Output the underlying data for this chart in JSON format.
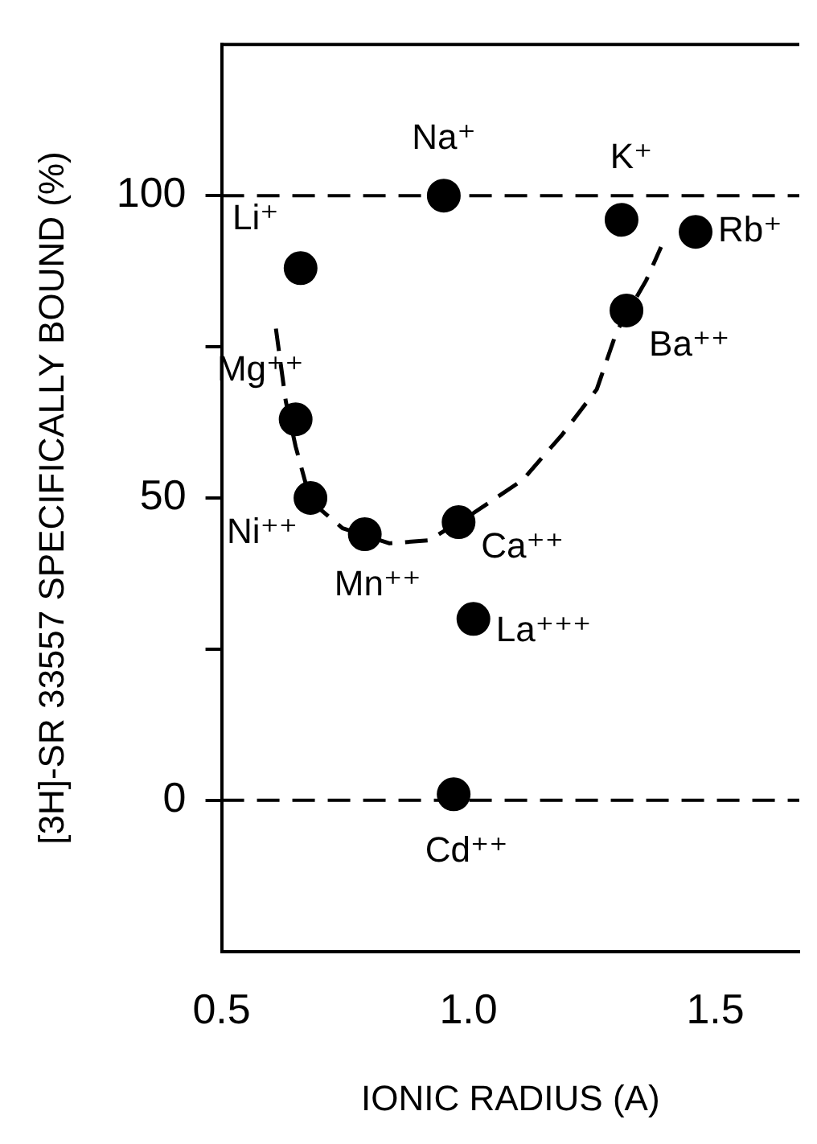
{
  "chart_data": {
    "type": "scatter",
    "xlabel": "IONIC RADIUS (A)",
    "ylabel": "[3H]-SR 33557 SPECIFICALLY BOUND (%)",
    "xlim": [
      0.5,
      1.67
    ],
    "xticks": [
      0.5,
      {
        "value": 1,
        "label": "1.0"
      },
      1.5
    ],
    "ylim": [
      -25,
      125
    ],
    "yticks": [
      0,
      {
        "value": 25,
        "label": null
      },
      50,
      {
        "value": 75,
        "label": null
      },
      100
    ],
    "grid": false,
    "legend": false,
    "marker": "circle",
    "series": [
      {
        "color": "#000000",
        "x": [
          0.66,
          0.95,
          1.31,
          1.46,
          1.32,
          0.65,
          0.68,
          0.79,
          0.98,
          1.01,
          0.97
        ],
        "values": [
          88,
          100,
          96,
          94,
          81,
          63,
          50,
          44,
          46,
          30,
          1
        ]
      },
      {
        "type": "line",
        "line_style": "dashed",
        "marker": "none",
        "color": "#000000",
        "x": [
          0.61,
          0.63,
          0.65,
          0.68,
          0.745,
          0.84,
          0.92,
          1.01,
          1.11,
          1.19,
          1.26,
          1.3,
          1.36,
          1.39
        ],
        "values": [
          78,
          66,
          58.5,
          49.5,
          45,
          42.5,
          43,
          47.5,
          53,
          60.5,
          68,
          77.5,
          86,
          91.5
        ]
      }
    ],
    "ref_lines": [
      {
        "axis": "y",
        "value": 100,
        "line_style": "dashed",
        "color": "#000000"
      },
      {
        "axis": "y",
        "value": 0,
        "line_style": "dashed",
        "color": "#000000"
      }
    ],
    "annotations": [
      {
        "text": "Li⁺",
        "x": 0.66,
        "y": 88
      },
      {
        "text": "Na⁺",
        "x": 0.95,
        "y": 100
      },
      {
        "text": "K⁺",
        "x": 1.31,
        "y": 96
      },
      {
        "text": "Rb⁺",
        "x": 1.46,
        "y": 94
      },
      {
        "text": "Ba⁺⁺",
        "x": 1.32,
        "y": 81
      },
      {
        "text": "Mg⁺⁺",
        "x": 0.65,
        "y": 63
      },
      {
        "text": "Ni⁺⁺",
        "x": 0.68,
        "y": 50
      },
      {
        "text": "Mn⁺⁺",
        "x": 0.79,
        "y": 44
      },
      {
        "text": "Ca⁺⁺",
        "x": 0.98,
        "y": 46
      },
      {
        "text": "La⁺⁺⁺",
        "x": 1.01,
        "y": 30
      },
      {
        "text": "Cd⁺⁺",
        "x": 0.97,
        "y": 1
      }
    ]
  }
}
